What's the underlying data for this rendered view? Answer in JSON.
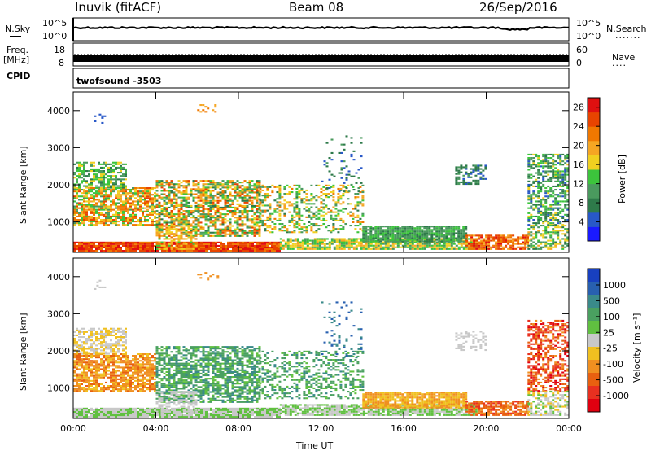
{
  "header": {
    "station": "Inuvik (fitACF)",
    "beam": "Beam 08",
    "date": "26/Sep/2016"
  },
  "panels": {
    "nsky_label": "N.Sky",
    "nsky_ticks": [
      "10^5",
      "10^0"
    ],
    "nsearch_label": "N.Search",
    "nsearch_ticks": [
      "10^5",
      "10^0"
    ],
    "freq_label_line1": "Freq.",
    "freq_label_line2": "[MHz]",
    "freq_ticks": [
      "18",
      "8"
    ],
    "nave_label": "Nave",
    "nave_ticks": [
      "60",
      "0"
    ],
    "cpid_label": "CPID",
    "cpid_value": "twofsound -3503"
  },
  "colors": {
    "power_scale": [
      "#1a1aff",
      "#2858c8",
      "#2e7a4a",
      "#4a9a5e",
      "#3cc43c",
      "#f0d020",
      "#f5a623",
      "#f07800",
      "#e84400",
      "#e01010"
    ],
    "velocity_scale": [
      "#1840c0",
      "#2860b0",
      "#3a8a8a",
      "#4aa060",
      "#60c040",
      "#c8c8c8",
      "#f0c020",
      "#f09020",
      "#e86010",
      "#e83020",
      "#e00010"
    ]
  },
  "chart_data": [
    {
      "type": "heatmap",
      "name": "power",
      "ylabel": "Slant Range [km]",
      "x_ticks": [
        "00:00",
        "04:00",
        "08:00",
        "12:00",
        "16:00",
        "20:00",
        "00:00"
      ],
      "y_ticks": [
        1000,
        2000,
        3000,
        4000
      ],
      "ylim": [
        180,
        4500
      ],
      "colorbar_label": "Power [dB]",
      "colorbar_ticks": [
        4,
        8,
        12,
        16,
        20,
        24,
        28
      ],
      "colorbar_range": [
        0,
        30
      ]
    },
    {
      "type": "heatmap",
      "name": "velocity",
      "ylabel": "Slant Range [km]",
      "xlabel": "Time UT",
      "x_ticks": [
        "00:00",
        "04:00",
        "08:00",
        "12:00",
        "16:00",
        "20:00",
        "00:00"
      ],
      "y_ticks": [
        1000,
        2000,
        3000,
        4000
      ],
      "ylim": [
        180,
        4500
      ],
      "colorbar_label": "Velocity [m s⁻¹]",
      "colorbar_ticks": [
        "1000",
        "500",
        "100",
        "25",
        "-25",
        "-100",
        "-500",
        "-1000"
      ]
    }
  ]
}
